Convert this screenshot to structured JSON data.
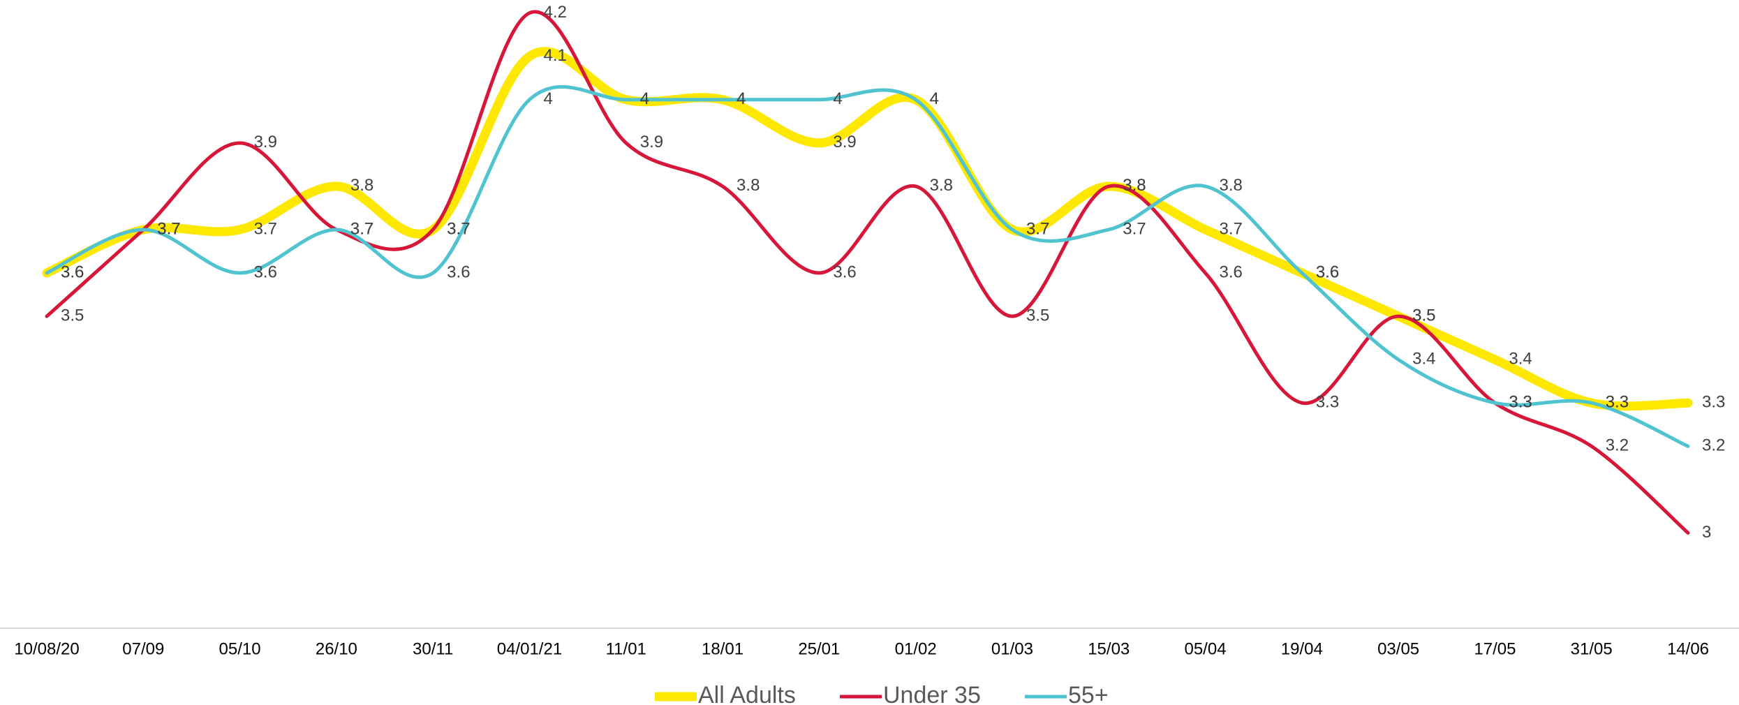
{
  "chart_data": {
    "type": "line",
    "categories": [
      "10/08/20",
      "07/09",
      "05/10",
      "26/10",
      "30/11",
      "04/01/21",
      "11/01",
      "18/01",
      "25/01",
      "01/02",
      "01/03",
      "15/03",
      "05/04",
      "19/04",
      "03/05",
      "17/05",
      "31/05",
      "14/06"
    ],
    "series": [
      {
        "name": "All Adults",
        "color": "#ffe800",
        "values": [
          3.6,
          3.7,
          3.7,
          3.8,
          3.7,
          4.1,
          4.0,
          4.0,
          3.9,
          4.0,
          3.7,
          3.8,
          3.7,
          3.6,
          3.5,
          3.4,
          3.3,
          3.3
        ]
      },
      {
        "name": "Under 35",
        "color": "#d7173a",
        "values": [
          3.5,
          3.7,
          3.9,
          3.7,
          3.7,
          4.2,
          3.9,
          3.8,
          3.6,
          3.8,
          3.5,
          3.8,
          3.6,
          3.3,
          3.5,
          3.3,
          3.2,
          3.0
        ]
      },
      {
        "name": "55+",
        "color": "#4fc3d0",
        "values": [
          3.6,
          3.7,
          3.6,
          3.7,
          3.6,
          4.0,
          4.0,
          4.0,
          4.0,
          4.0,
          3.7,
          3.7,
          3.8,
          3.6,
          3.4,
          3.3,
          3.3,
          3.2
        ]
      }
    ],
    "ylim": [
      2.78,
      4.23
    ],
    "legend": "bottom"
  }
}
